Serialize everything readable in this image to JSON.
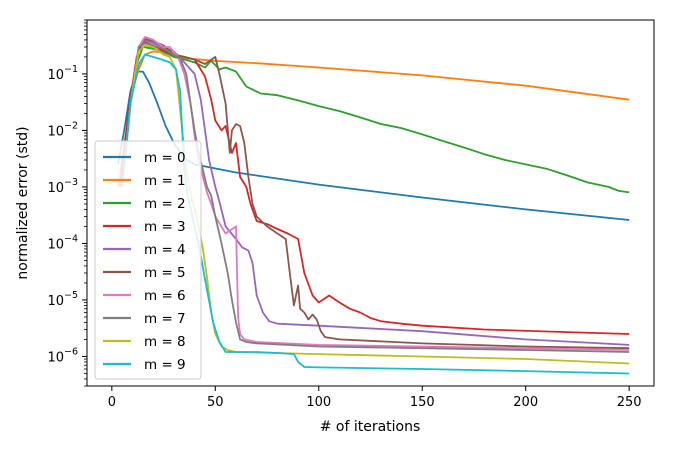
{
  "chart_data": {
    "type": "line",
    "title": "",
    "xlabel": "# of iterations",
    "ylabel": "normalized error (std)",
    "xlim": [
      -12,
      262
    ],
    "ylim": [
      3e-07,
      0.9
    ],
    "yscale": "log",
    "grid": false,
    "legend_position": "left",
    "x_ticks": [
      0,
      50,
      100,
      150,
      200,
      250
    ],
    "x_tick_labels": [
      "0",
      "50",
      "100",
      "150",
      "200",
      "250"
    ],
    "y_ticks": [
      1e-06,
      1e-05,
      0.0001,
      0.001,
      0.01,
      0.1
    ],
    "y_tick_labels": [
      {
        "base": "10",
        "exp": "−6"
      },
      {
        "base": "10",
        "exp": "−5"
      },
      {
        "base": "10",
        "exp": "−4"
      },
      {
        "base": "10",
        "exp": "−3"
      },
      {
        "base": "10",
        "exp": "−2"
      },
      {
        "base": "10",
        "exp": "−1"
      }
    ],
    "series": [
      {
        "name": "m = 0",
        "color": "#1f77b4",
        "points": [
          [
            3,
            0.0025
          ],
          [
            6,
            0.01
          ],
          [
            9,
            0.05
          ],
          [
            12,
            0.11
          ],
          [
            15,
            0.11
          ],
          [
            18,
            0.07
          ],
          [
            22,
            0.03
          ],
          [
            26,
            0.012
          ],
          [
            30,
            0.006
          ],
          [
            35,
            0.0032
          ],
          [
            40,
            0.0025
          ],
          [
            60,
            0.0018
          ],
          [
            100,
            0.0011
          ],
          [
            150,
            0.00065
          ],
          [
            200,
            0.0004
          ],
          [
            250,
            0.00026
          ]
        ]
      },
      {
        "name": "m = 1",
        "color": "#ff7f0e",
        "points": [
          [
            3,
            0.001
          ],
          [
            7,
            0.01
          ],
          [
            10,
            0.05
          ],
          [
            13,
            0.12
          ],
          [
            16,
            0.22
          ],
          [
            20,
            0.25
          ],
          [
            24,
            0.24
          ],
          [
            28,
            0.22
          ],
          [
            35,
            0.19
          ],
          [
            50,
            0.17
          ],
          [
            70,
            0.155
          ],
          [
            100,
            0.13
          ],
          [
            150,
            0.094
          ],
          [
            200,
            0.062
          ],
          [
            250,
            0.035
          ]
        ]
      },
      {
        "name": "m = 2",
        "color": "#2ca02c",
        "points": [
          [
            4,
            0.001
          ],
          [
            8,
            0.02
          ],
          [
            12,
            0.15
          ],
          [
            15,
            0.3
          ],
          [
            20,
            0.28
          ],
          [
            25,
            0.25
          ],
          [
            30,
            0.2
          ],
          [
            35,
            0.18
          ],
          [
            40,
            0.16
          ],
          [
            45,
            0.13
          ],
          [
            48,
            0.17
          ],
          [
            52,
            0.12
          ],
          [
            55,
            0.13
          ],
          [
            60,
            0.11
          ],
          [
            65,
            0.06
          ],
          [
            72,
            0.045
          ],
          [
            80,
            0.042
          ],
          [
            90,
            0.034
          ],
          [
            100,
            0.027
          ],
          [
            110,
            0.022
          ],
          [
            120,
            0.017
          ],
          [
            130,
            0.013
          ],
          [
            140,
            0.011
          ],
          [
            150,
            0.0085
          ],
          [
            160,
            0.0065
          ],
          [
            170,
            0.005
          ],
          [
            180,
            0.0038
          ],
          [
            190,
            0.003
          ],
          [
            200,
            0.0025
          ],
          [
            210,
            0.0021
          ],
          [
            220,
            0.0016
          ],
          [
            230,
            0.0012
          ],
          [
            240,
            0.001
          ],
          [
            245,
            0.00085
          ],
          [
            250,
            0.0008
          ]
        ]
      },
      {
        "name": "m = 3",
        "color": "#d62728",
        "points": [
          [
            4,
            0.001
          ],
          [
            8,
            0.02
          ],
          [
            12,
            0.2
          ],
          [
            15,
            0.38
          ],
          [
            20,
            0.32
          ],
          [
            25,
            0.26
          ],
          [
            30,
            0.22
          ],
          [
            35,
            0.2
          ],
          [
            40,
            0.18
          ],
          [
            45,
            0.09
          ],
          [
            48,
            0.035
          ],
          [
            50,
            0.015
          ],
          [
            53,
            0.01
          ],
          [
            55,
            0.012
          ],
          [
            58,
            0.004
          ],
          [
            60,
            0.006
          ],
          [
            62,
            0.0015
          ],
          [
            65,
            0.001
          ],
          [
            67,
            0.0005
          ],
          [
            70,
            0.00025
          ],
          [
            75,
            0.00022
          ],
          [
            80,
            0.00018
          ],
          [
            85,
            0.00015
          ],
          [
            90,
            0.00012
          ],
          [
            93,
            3e-05
          ],
          [
            97,
            1.2e-05
          ],
          [
            100,
            9e-06
          ],
          [
            105,
            1.2e-05
          ],
          [
            110,
            9e-06
          ],
          [
            115,
            7e-06
          ],
          [
            120,
            6e-06
          ],
          [
            125,
            4.8e-06
          ],
          [
            130,
            4.2e-06
          ],
          [
            140,
            3.8e-06
          ],
          [
            150,
            3.5e-06
          ],
          [
            180,
            3e-06
          ],
          [
            220,
            2.7e-06
          ],
          [
            250,
            2.5e-06
          ]
        ]
      },
      {
        "name": "m = 4",
        "color": "#9467bd",
        "points": [
          [
            5,
            0.001
          ],
          [
            9,
            0.03
          ],
          [
            13,
            0.3
          ],
          [
            16,
            0.4
          ],
          [
            20,
            0.35
          ],
          [
            25,
            0.3
          ],
          [
            30,
            0.25
          ],
          [
            35,
            0.16
          ],
          [
            40,
            0.1
          ],
          [
            43,
            0.035
          ],
          [
            45,
            0.01
          ],
          [
            47,
            0.003
          ],
          [
            50,
            0.001
          ],
          [
            52,
            0.00055
          ],
          [
            55,
            0.0002
          ],
          [
            60,
            0.00012
          ],
          [
            63,
            8.5e-05
          ],
          [
            66,
            7.5e-05
          ],
          [
            68,
            4.5e-05
          ],
          [
            70,
            1.2e-05
          ],
          [
            73,
            6e-06
          ],
          [
            76,
            4.2e-06
          ],
          [
            80,
            3.8e-06
          ],
          [
            100,
            3.5e-06
          ],
          [
            150,
            2.8e-06
          ],
          [
            200,
            2e-06
          ],
          [
            250,
            1.6e-06
          ]
        ]
      },
      {
        "name": "m = 5",
        "color": "#8c564b",
        "points": [
          [
            5,
            0.001
          ],
          [
            9,
            0.03
          ],
          [
            13,
            0.3
          ],
          [
            16,
            0.42
          ],
          [
            20,
            0.38
          ],
          [
            25,
            0.32
          ],
          [
            30,
            0.22
          ],
          [
            35,
            0.2
          ],
          [
            40,
            0.18
          ],
          [
            45,
            0.15
          ],
          [
            50,
            0.2
          ],
          [
            52,
            0.1
          ],
          [
            55,
            0.03
          ],
          [
            57,
            0.004
          ],
          [
            58,
            0.01
          ],
          [
            60,
            0.013
          ],
          [
            62,
            0.012
          ],
          [
            64,
            0.006
          ],
          [
            66,
            0.0015
          ],
          [
            68,
            0.0005
          ],
          [
            70,
            0.0003
          ],
          [
            75,
            0.0002
          ],
          [
            80,
            0.00015
          ],
          [
            84,
            0.00012
          ],
          [
            86,
            3e-05
          ],
          [
            88,
            8e-06
          ],
          [
            90,
            1.8e-05
          ],
          [
            91,
            7e-06
          ],
          [
            93,
            6e-06
          ],
          [
            95,
            4.5e-06
          ],
          [
            97,
            5.5e-06
          ],
          [
            99,
            4.5e-06
          ],
          [
            101,
            2.8e-06
          ],
          [
            103,
            2.2e-06
          ],
          [
            110,
            2e-06
          ],
          [
            150,
            1.7e-06
          ],
          [
            200,
            1.5e-06
          ],
          [
            250,
            1.4e-06
          ]
        ]
      },
      {
        "name": "m = 6",
        "color": "#e377c2",
        "points": [
          [
            5,
            0.001
          ],
          [
            9,
            0.03
          ],
          [
            13,
            0.3
          ],
          [
            16,
            0.45
          ],
          [
            20,
            0.4
          ],
          [
            25,
            0.3
          ],
          [
            28,
            0.3
          ],
          [
            32,
            0.2
          ],
          [
            35,
            0.1
          ],
          [
            38,
            0.03
          ],
          [
            40,
            0.008
          ],
          [
            42,
            0.003
          ],
          [
            44,
            0.0015
          ],
          [
            46,
            0.0008
          ],
          [
            48,
            0.0005
          ],
          [
            50,
            0.0003
          ],
          [
            55,
            0.00015
          ],
          [
            60,
            0.0002
          ],
          [
            61,
            5e-06
          ],
          [
            62,
            2.5e-06
          ],
          [
            64,
            2e-06
          ],
          [
            70,
            1.8e-06
          ],
          [
            100,
            1.6e-06
          ],
          [
            150,
            1.5e-06
          ],
          [
            200,
            1.4e-06
          ],
          [
            250,
            1.3e-06
          ]
        ]
      },
      {
        "name": "m = 7",
        "color": "#7f7f7f",
        "points": [
          [
            5,
            0.001
          ],
          [
            9,
            0.03
          ],
          [
            13,
            0.3
          ],
          [
            16,
            0.35
          ],
          [
            20,
            0.32
          ],
          [
            25,
            0.28
          ],
          [
            30,
            0.22
          ],
          [
            33,
            0.19
          ],
          [
            36,
            0.1
          ],
          [
            38,
            0.03
          ],
          [
            40,
            0.01
          ],
          [
            42,
            0.004
          ],
          [
            44,
            0.002
          ],
          [
            46,
            0.001
          ],
          [
            48,
            0.0007
          ],
          [
            50,
            0.0003
          ],
          [
            53,
            0.0001
          ],
          [
            56,
            3e-05
          ],
          [
            58,
            1e-05
          ],
          [
            60,
            4e-06
          ],
          [
            62,
            2e-06
          ],
          [
            65,
            1.8e-06
          ],
          [
            70,
            1.7e-06
          ],
          [
            100,
            1.5e-06
          ],
          [
            150,
            1.4e-06
          ],
          [
            200,
            1.3e-06
          ],
          [
            250,
            1.2e-06
          ]
        ]
      },
      {
        "name": "m = 8",
        "color": "#bcbd22",
        "points": [
          [
            5,
            0.001
          ],
          [
            9,
            0.03
          ],
          [
            13,
            0.25
          ],
          [
            16,
            0.32
          ],
          [
            20,
            0.3
          ],
          [
            25,
            0.22
          ],
          [
            28,
            0.2
          ],
          [
            31,
            0.12
          ],
          [
            34,
            0.01
          ],
          [
            36,
            0.002
          ],
          [
            38,
            0.0008
          ],
          [
            40,
            0.0004
          ],
          [
            42,
            0.0002
          ],
          [
            44,
            8e-05
          ],
          [
            46,
            2.5e-05
          ],
          [
            48,
            6e-06
          ],
          [
            50,
            2.5e-06
          ],
          [
            53,
            1.5e-06
          ],
          [
            56,
            1.3e-06
          ],
          [
            60,
            1.2e-06
          ],
          [
            100,
            1.1e-06
          ],
          [
            150,
            1e-06
          ],
          [
            200,
            9e-07
          ],
          [
            250,
            7.5e-07
          ]
        ]
      },
      {
        "name": "m = 9",
        "color": "#17becf",
        "points": [
          [
            5,
            0.001
          ],
          [
            9,
            0.03
          ],
          [
            13,
            0.15
          ],
          [
            16,
            0.22
          ],
          [
            20,
            0.2
          ],
          [
            24,
            0.18
          ],
          [
            28,
            0.16
          ],
          [
            31,
            0.12
          ],
          [
            33,
            0.05
          ],
          [
            35,
            0.002
          ],
          [
            37,
            0.0006
          ],
          [
            40,
            0.0002
          ],
          [
            43,
            6e-05
          ],
          [
            46,
            1.5e-05
          ],
          [
            49,
            4e-06
          ],
          [
            52,
            1.8e-06
          ],
          [
            55,
            1.2e-06
          ],
          [
            60,
            1.2e-06
          ],
          [
            70,
            1.2e-06
          ],
          [
            80,
            1.15e-06
          ],
          [
            88,
            1.1e-06
          ],
          [
            90,
            8e-07
          ],
          [
            93,
            6.5e-07
          ],
          [
            100,
            6.4e-07
          ],
          [
            150,
            6e-07
          ],
          [
            200,
            5.5e-07
          ],
          [
            250,
            5e-07
          ]
        ]
      }
    ]
  }
}
